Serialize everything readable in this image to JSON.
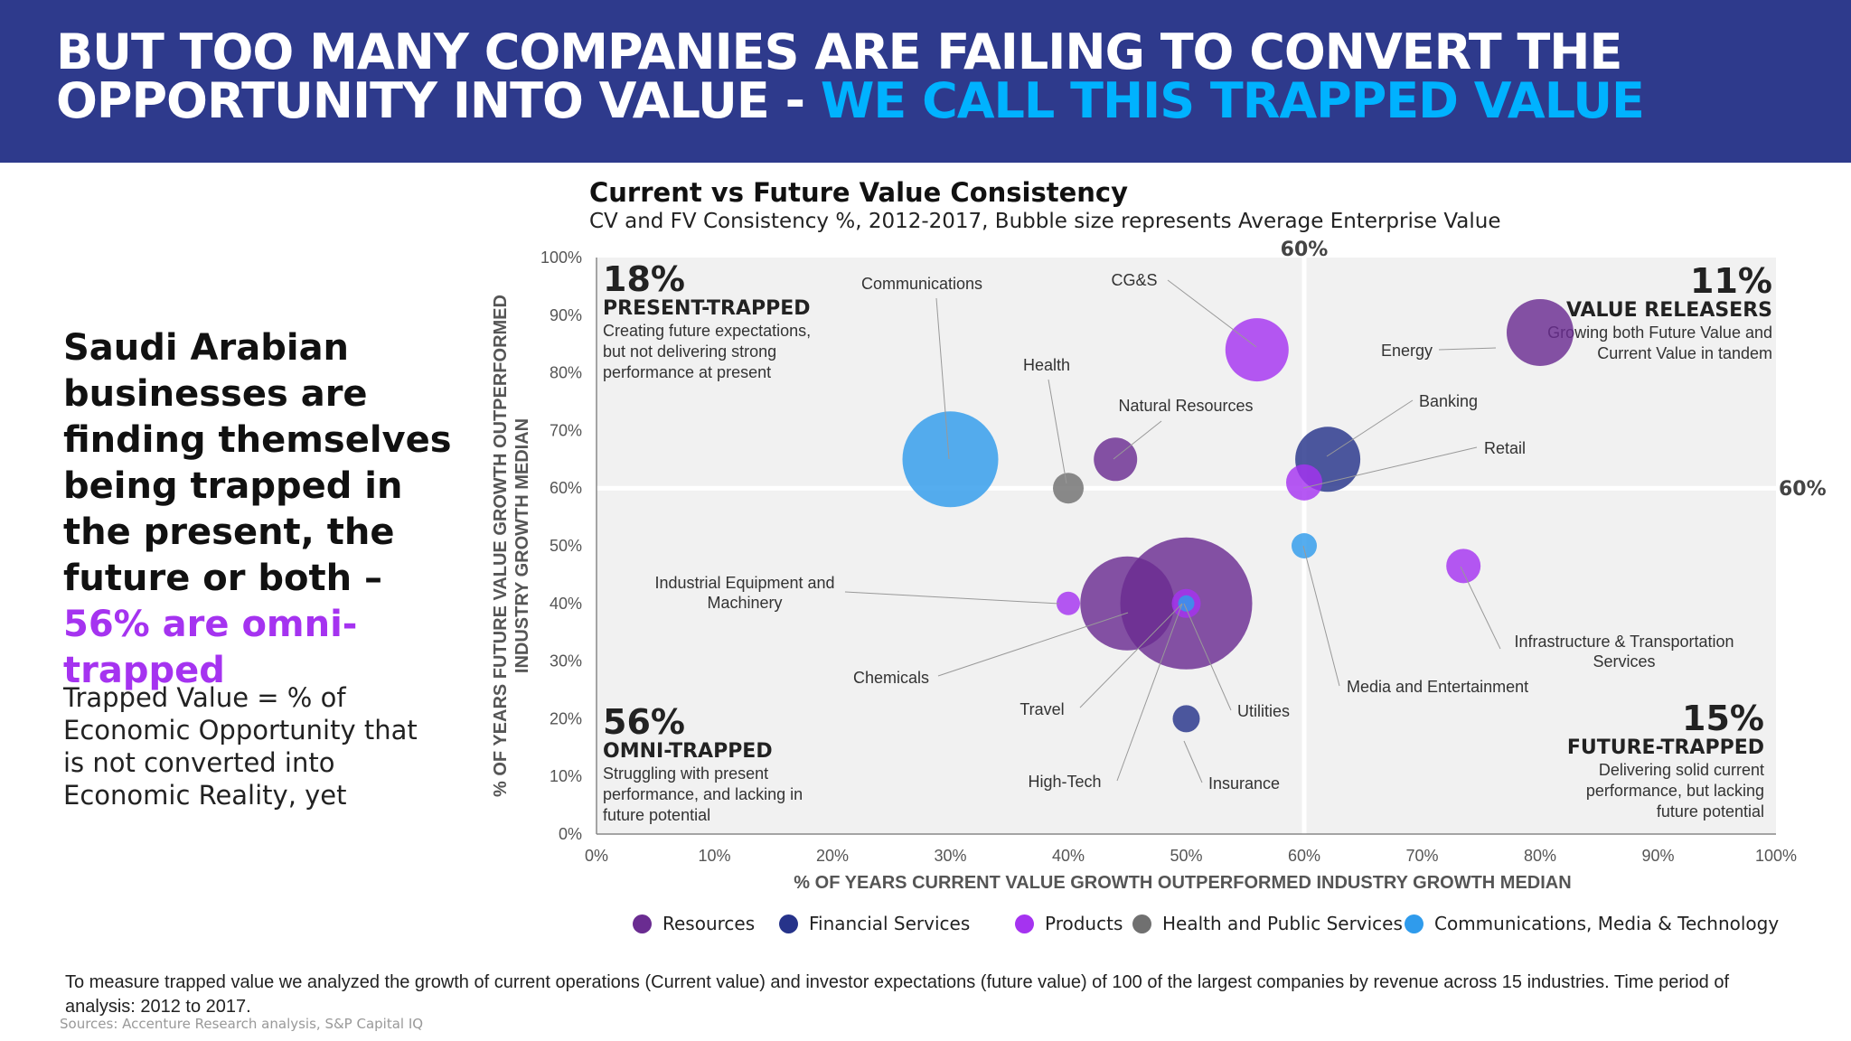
{
  "header": {
    "line1": "BUT TOO MANY COMPANIES ARE FAILING TO CONVERT THE",
    "line2_plain": "OPPORTUNITY INTO VALUE - ",
    "line2_highlight": "WE CALL THIS TRAPPED VALUE"
  },
  "left_panel": {
    "headline": "Saudi Arabian businesses are finding themselves being trapped in the present, the future or both – ",
    "headline_highlight": "56% are omni-trapped",
    "definition": "Trapped Value = % of Economic Opportunity that is not converted into Economic Reality, yet"
  },
  "footnote": "To measure trapped value we analyzed the growth of current operations (Current value) and investor expectations (future value) of 100 of the largest companies by revenue across 15 industries. Time period of analysis: 2012 to 2017.",
  "sources": "Sources: Accenture Research analysis, S&P Capital IQ",
  "colors": {
    "header_bg": "#2e3a8c",
    "highlight": "#00b2ff",
    "accent_purple": "#a533f0",
    "plot_bg": "#f1f1f1"
  },
  "chart_data": {
    "type": "bubble",
    "title": "Current vs Future Value Consistency",
    "subtitle": "CV and FV Consistency %, 2012-2017, Bubble size represents Average Enterprise Value",
    "xlabel": "% OF YEARS CURRENT VALUE GROWTH OUTPERFORMED INDUSTRY GROWTH MEDIAN",
    "ylabel_line1": "% OF YEARS FUTURE VALUE GROWTH OUTPERFORMED",
    "ylabel_line2": "INDUSTRY GROWTH MEDIAN",
    "xlim": [
      0,
      100
    ],
    "ylim": [
      0,
      100
    ],
    "x_ticks": [
      "0%",
      "10%",
      "20%",
      "30%",
      "40%",
      "50%",
      "60%",
      "70%",
      "80%",
      "90%",
      "100%"
    ],
    "y_ticks": [
      "0%",
      "10%",
      "20%",
      "30%",
      "40%",
      "50%",
      "60%",
      "70%",
      "80%",
      "90%",
      "100%"
    ],
    "threshold_x": 60,
    "threshold_y": 60,
    "threshold_x_label": "60%",
    "threshold_y_label": "60%",
    "grid": false,
    "legend_position": "bottom",
    "sectors": [
      {
        "name": "Resources",
        "color": "#6a2c91"
      },
      {
        "name": "Financial Services",
        "color": "#26338a"
      },
      {
        "name": "Products",
        "color": "#a533f0"
      },
      {
        "name": "Health and Public Services",
        "color": "#707070"
      },
      {
        "name": "Communications, Media & Technology",
        "color": "#2f9bec"
      }
    ],
    "points": [
      {
        "label": "Communications",
        "x": 30,
        "y": 65,
        "size": 53,
        "sector": 4
      },
      {
        "label": "CG&S",
        "x": 56,
        "y": 84,
        "size": 35,
        "sector": 2
      },
      {
        "label": "Health",
        "x": 40,
        "y": 60,
        "size": 17,
        "sector": 3
      },
      {
        "label": "Natural Resources",
        "x": 44,
        "y": 65,
        "size": 24,
        "sector": 0
      },
      {
        "label": "Energy",
        "x": 80,
        "y": 87,
        "size": 37,
        "sector": 0
      },
      {
        "label": "Banking",
        "x": 62,
        "y": 65,
        "size": 36,
        "sector": 1
      },
      {
        "label": "Retail",
        "x": 60,
        "y": 61,
        "size": 20,
        "sector": 2
      },
      {
        "label": "Industrial Equipment and Machinery",
        "x": 40,
        "y": 40,
        "size": 13,
        "sector": 2
      },
      {
        "label": "Chemicals",
        "x": 45,
        "y": 40,
        "size": 52,
        "sector": 0
      },
      {
        "label": "Travel",
        "x": 50,
        "y": 40,
        "size": 16,
        "sector": 2
      },
      {
        "label": "Utilities",
        "x": 50,
        "y": 40,
        "size": 73,
        "sector": 0
      },
      {
        "label": "High-Tech",
        "x": 50,
        "y": 40,
        "size": 9,
        "sector": 4
      },
      {
        "label": "Insurance",
        "x": 50,
        "y": 20,
        "size": 15,
        "sector": 1
      },
      {
        "label": "Media and Entertainment",
        "x": 60,
        "y": 50,
        "size": 14,
        "sector": 4
      },
      {
        "label": "Infrastructure & Transportation Services",
        "x": 73.5,
        "y": 46.5,
        "size": 19,
        "sector": 2
      }
    ],
    "quadrants": [
      {
        "pct": "18%",
        "name": "PRESENT-TRAPPED",
        "desc": "Creating future expectations, but not delivering strong performance at present",
        "position": "top-left"
      },
      {
        "pct": "11%",
        "name": "VALUE RELEASERS",
        "desc": "Growing both Future Value and Current Value in tandem",
        "position": "top-right"
      },
      {
        "pct": "56%",
        "name": "OMNI-TRAPPED",
        "desc": "Struggling with present performance, and lacking in future potential",
        "position": "bottom-left"
      },
      {
        "pct": "15%",
        "name": "FUTURE-TRAPPED",
        "desc": "Delivering solid current performance, but lacking future potential",
        "position": "bottom-right"
      }
    ]
  }
}
